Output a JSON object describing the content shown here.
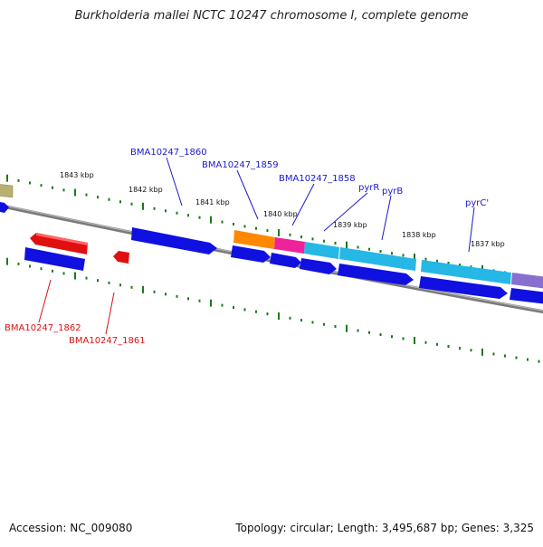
{
  "title": "Burkholderia mallei NCTC 10247 chromosome I, complete genome",
  "footer": {
    "accession": "Accession: NC_009080",
    "summary": "Topology: circular; Length: 3,495,687 bp; Genes: 3,325"
  },
  "colors": {
    "backbone": "#7a7a7a",
    "ticks": "#1a7a1a",
    "forward_gene": "#1010e0",
    "reverse_gene": "#e01010",
    "label_blue": "#1a1acc",
    "label_red": "#dd1111",
    "pyr_cyan": "#25b7e6",
    "orange": "#ff8800",
    "magenta": "#ee2299",
    "purple": "#8870d0",
    "olive": "#b8b070"
  },
  "kbp_labels": [
    {
      "text": "1843 kbp"
    },
    {
      "text": "1842 kbp"
    },
    {
      "text": "1841 kbp"
    },
    {
      "text": "1840 kbp"
    },
    {
      "text": "1839 kbp"
    },
    {
      "text": "1838 kbp"
    },
    {
      "text": "1837 kbp"
    }
  ],
  "gene_labels": [
    {
      "text": "BMA10247_1860",
      "strand": "forward"
    },
    {
      "text": "BMA10247_1859",
      "strand": "forward"
    },
    {
      "text": "BMA10247_1858",
      "strand": "forward"
    },
    {
      "text": "pyrR",
      "strand": "forward"
    },
    {
      "text": "pyrB",
      "strand": "forward"
    },
    {
      "text": "pyrC'",
      "strand": "forward"
    },
    {
      "text": "BMA10247_1862",
      "strand": "reverse"
    },
    {
      "text": "BMA10247_1861",
      "strand": "reverse"
    }
  ]
}
